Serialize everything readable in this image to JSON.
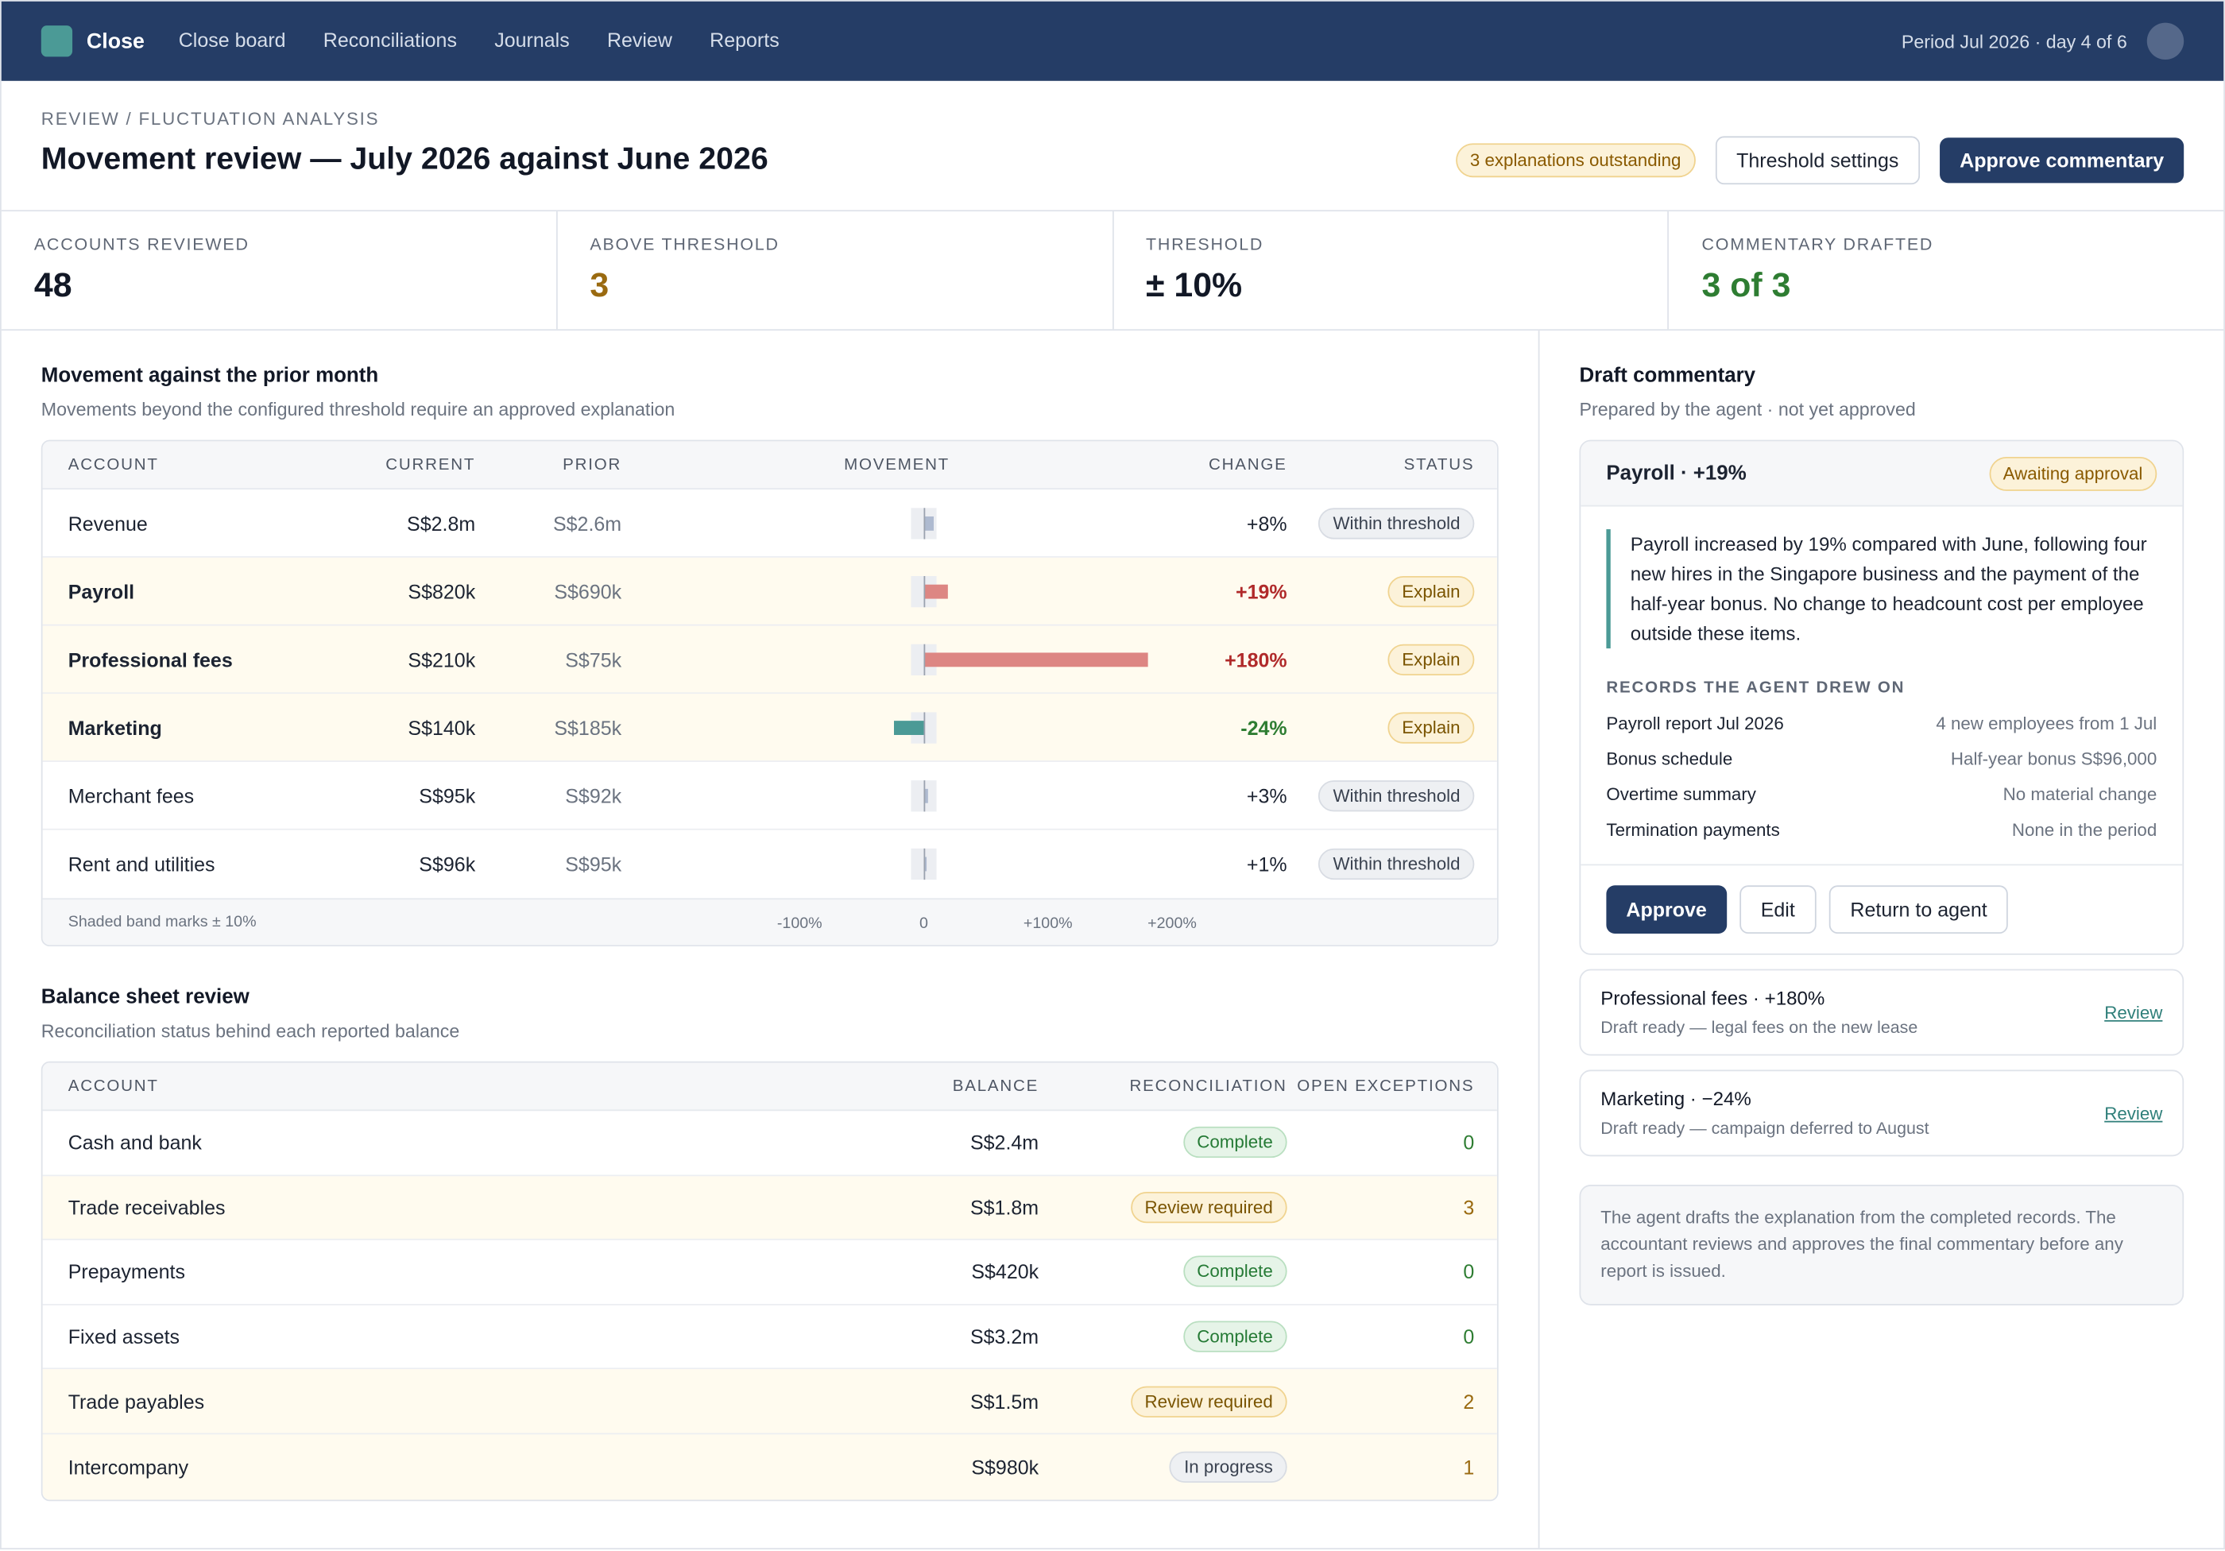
{
  "app": {
    "name": "Close",
    "nav": [
      "Close board",
      "Reconciliations",
      "Journals",
      "Review",
      "Reports"
    ],
    "period": "Period Jul 2026 · day 4 of 6"
  },
  "header": {
    "breadcrumb": "REVIEW / FLUCTUATION ANALYSIS",
    "title": "Movement review — July 2026 against June 2026",
    "outstanding_badge": "3 explanations outstanding",
    "threshold_button": "Threshold settings",
    "approve_button": "Approve commentary"
  },
  "kpis": [
    {
      "label": "ACCOUNTS REVIEWED",
      "value": "48",
      "color": "#121826"
    },
    {
      "label": "ABOVE THRESHOLD",
      "value": "3",
      "color": "#9a6a10"
    },
    {
      "label": "THRESHOLD",
      "value": "± 10%",
      "color": "#121826"
    },
    {
      "label": "COMMENTARY DRAFTED",
      "value": "3 of 3",
      "color": "#2e7d32"
    }
  ],
  "movement": {
    "title": "Movement against the prior month",
    "subtitle": "Movements beyond the configured threshold require an approved explanation",
    "columns": [
      "ACCOUNT",
      "CURRENT",
      "PRIOR",
      "MOVEMENT",
      "CHANGE",
      "STATUS"
    ],
    "rows": [
      {
        "account": "Revenue",
        "current": "S$2.8m",
        "prior": "S$2.6m",
        "change": "+8%",
        "pct": 8,
        "status": "Within threshold",
        "flag": false
      },
      {
        "account": "Payroll",
        "current": "S$820k",
        "prior": "S$690k",
        "change": "+19%",
        "pct": 19,
        "status": "Explain",
        "flag": true
      },
      {
        "account": "Professional fees",
        "current": "S$210k",
        "prior": "S$75k",
        "change": "+180%",
        "pct": 180,
        "status": "Explain",
        "flag": true
      },
      {
        "account": "Marketing",
        "current": "S$140k",
        "prior": "S$185k",
        "change": "-24%",
        "pct": -24,
        "status": "Explain",
        "flag": true
      },
      {
        "account": "Merchant fees",
        "current": "S$95k",
        "prior": "S$92k",
        "change": "+3%",
        "pct": 3,
        "status": "Within threshold",
        "flag": false
      },
      {
        "account": "Rent and utilities",
        "current": "S$96k",
        "prior": "S$95k",
        "change": "+1%",
        "pct": 1,
        "status": "Within threshold",
        "flag": false
      }
    ],
    "footnote": "Shaded band marks ± 10%",
    "ticks": [
      "-100%",
      "0",
      "+100%",
      "+200%"
    ]
  },
  "balance": {
    "title": "Balance sheet review",
    "subtitle": "Reconciliation status behind each reported balance",
    "columns": [
      "ACCOUNT",
      "BALANCE",
      "RECONCILIATION",
      "OPEN EXCEPTIONS"
    ],
    "rows": [
      {
        "account": "Cash and bank",
        "balance": "S$2.4m",
        "status": "Complete",
        "kind": "green",
        "exceptions": "0"
      },
      {
        "account": "Trade receivables",
        "balance": "S$1.8m",
        "status": "Review required",
        "kind": "amber",
        "exceptions": "3"
      },
      {
        "account": "Prepayments",
        "balance": "S$420k",
        "status": "Complete",
        "kind": "green",
        "exceptions": "0"
      },
      {
        "account": "Fixed assets",
        "balance": "S$3.2m",
        "status": "Complete",
        "kind": "green",
        "exceptions": "0"
      },
      {
        "account": "Trade payables",
        "balance": "S$1.5m",
        "status": "Review required",
        "kind": "amber",
        "exceptions": "2"
      },
      {
        "account": "Intercompany",
        "balance": "S$980k",
        "status": "In progress",
        "kind": "grey",
        "exceptions": "1"
      }
    ]
  },
  "commentary": {
    "title": "Draft commentary",
    "subtitle": "Prepared by the agent · not yet approved",
    "main": {
      "title": "Payroll · +19%",
      "badge": "Awaiting approval",
      "text": "Payroll increased by 19% compared with June, following four new hires in the Singapore business and the payment of the half-year bonus. No change to headcount cost per employee outside these items.",
      "records_title": "RECORDS THE AGENT DREW ON",
      "records": [
        {
          "label": "Payroll report Jul 2026",
          "value": "4 new employees from 1 Jul"
        },
        {
          "label": "Bonus schedule",
          "value": "Half-year bonus S$96,000"
        },
        {
          "label": "Overtime summary",
          "value": "No material change"
        },
        {
          "label": "Termination payments",
          "value": "None in the period"
        }
      ],
      "approve": "Approve",
      "edit": "Edit",
      "return": "Return to agent"
    },
    "others": [
      {
        "title": "Professional fees · +180%",
        "sub": "Draft ready — legal fees on the new lease",
        "link": "Review"
      },
      {
        "title": "Marketing · −24%",
        "sub": "Draft ready — campaign deferred to August",
        "link": "Review"
      }
    ],
    "note": "The agent drafts the explanation from the completed records. The accountant reviews and approves the final commentary before any report is issued."
  }
}
